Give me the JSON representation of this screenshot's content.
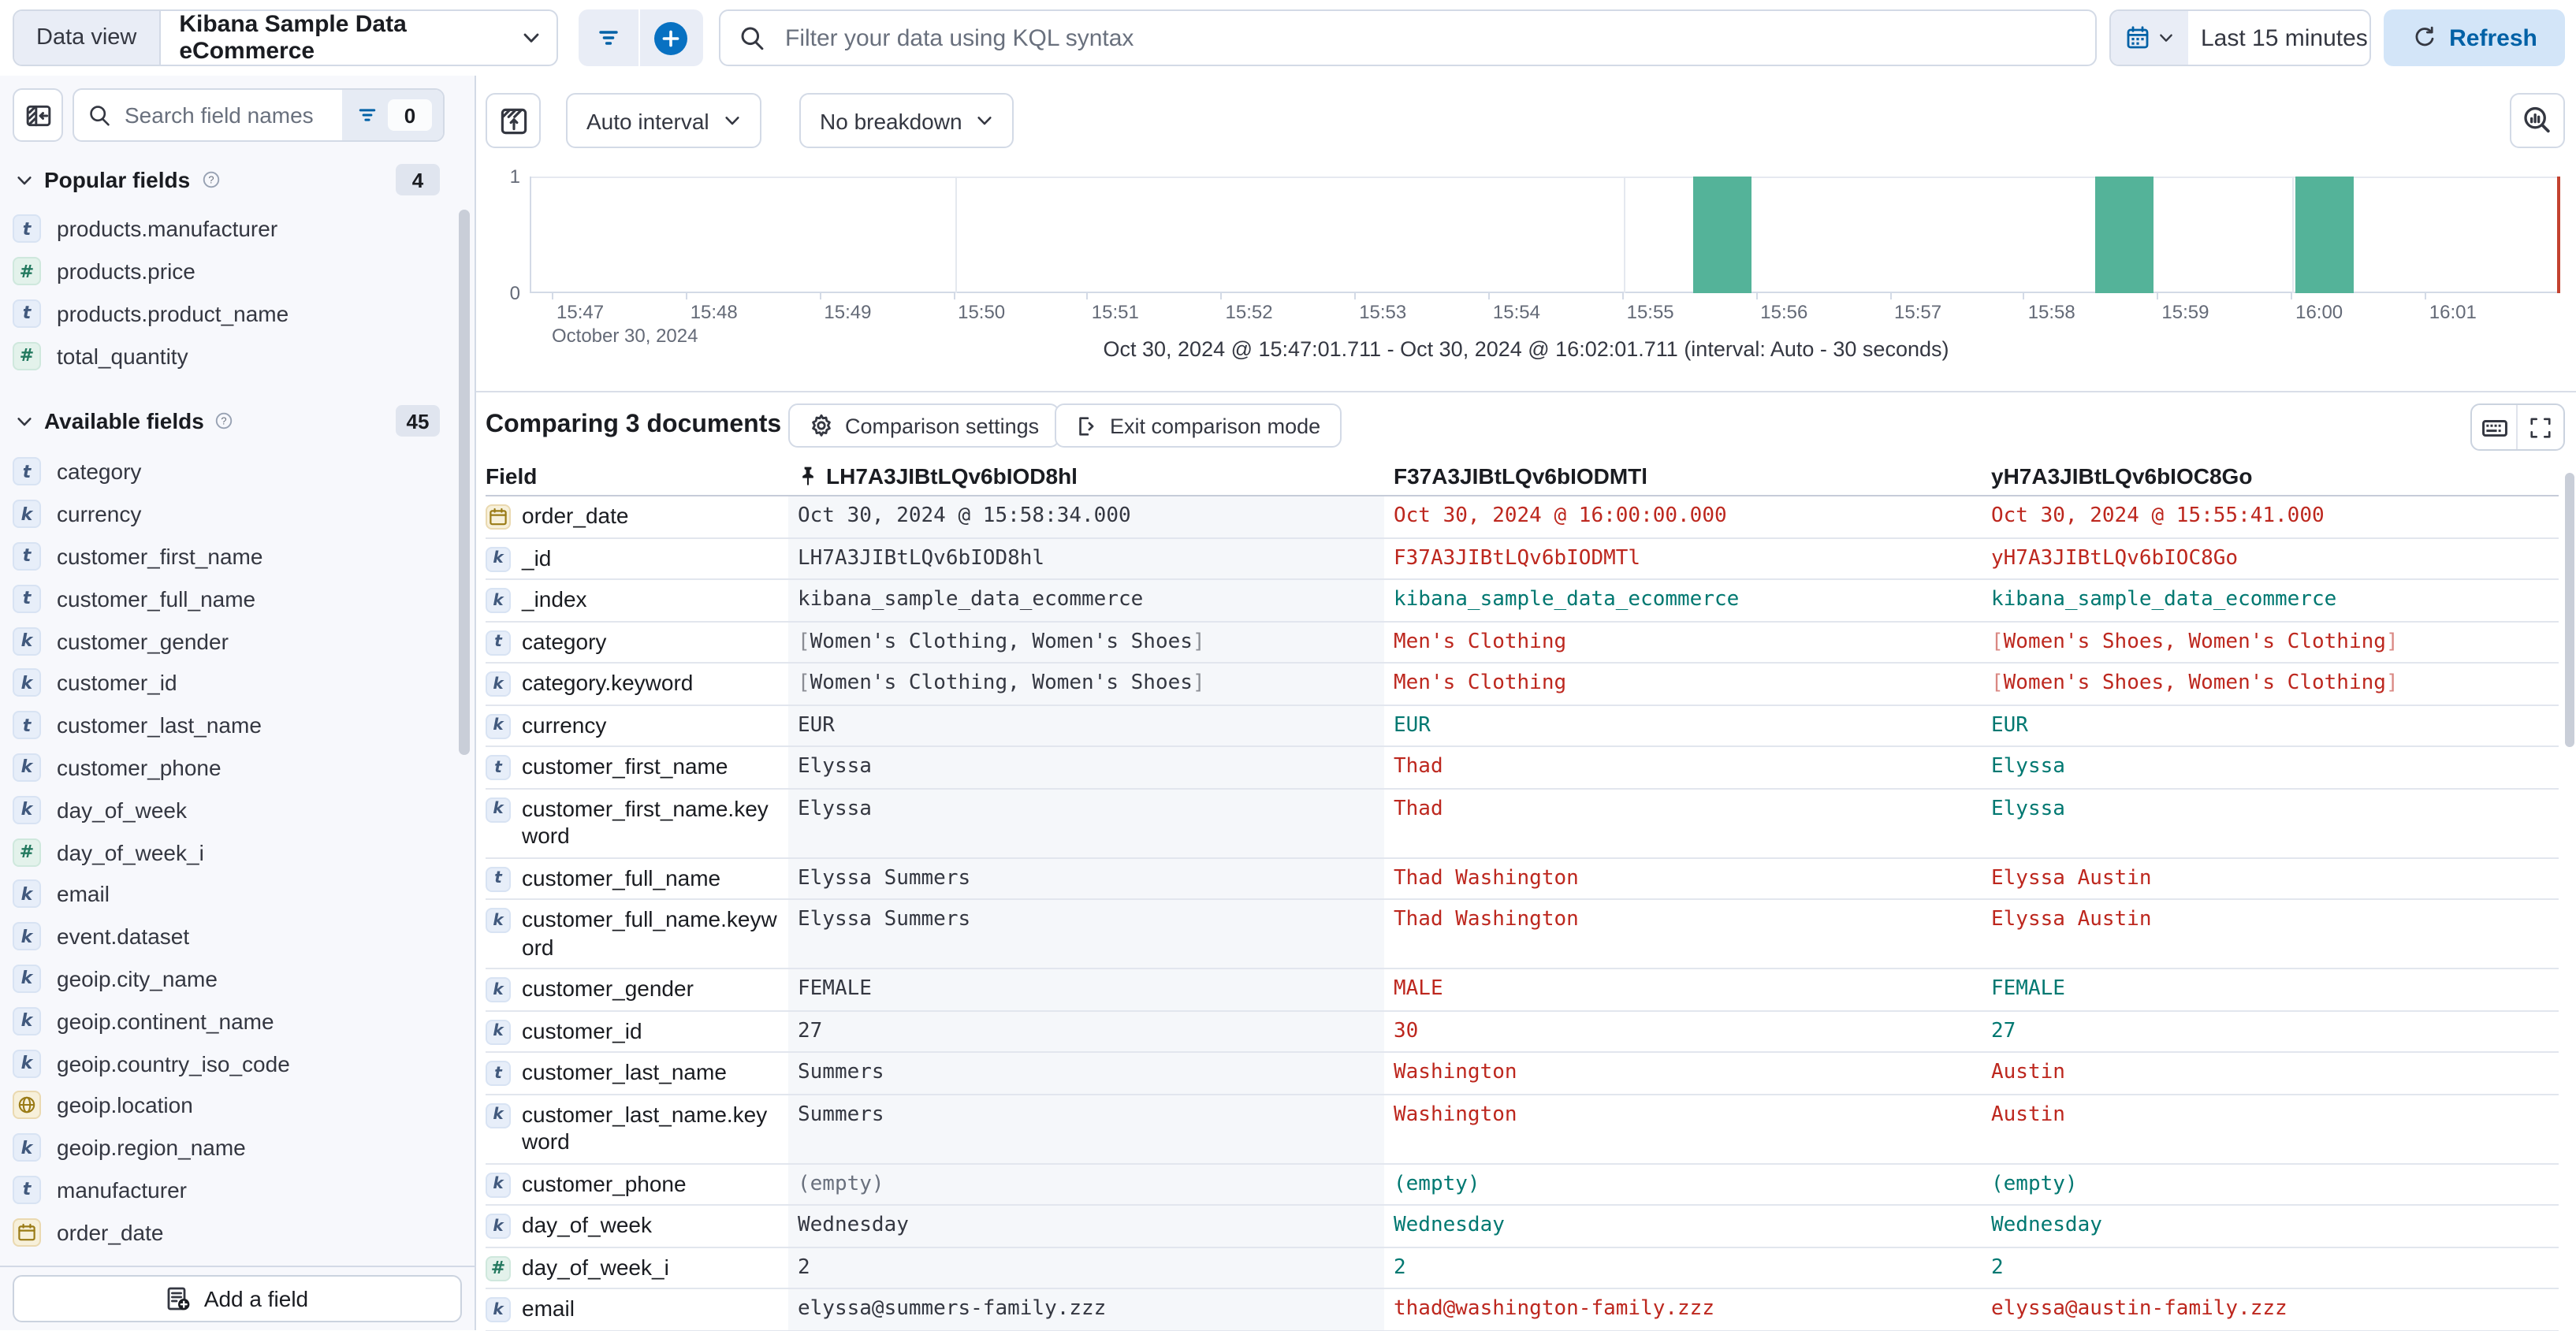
{
  "colors": {
    "primary": "#0071c2",
    "bar_green": "#54b399",
    "diff_red": "#bd271e",
    "match_teal": "#007871",
    "time_marker": "#c3422f",
    "sidebar_bg": "#f7f8fc"
  },
  "topbar": {
    "data_view_label": "Data view",
    "data_view_value": "Kibana Sample Data eCommerce",
    "kql_placeholder": "Filter your data using KQL syntax",
    "time_range": "Last 15 minutes",
    "refresh_label": "Refresh"
  },
  "sidebar": {
    "search_placeholder": "Search field names",
    "filter_count": "0",
    "popular": {
      "title": "Popular fields",
      "count": "4",
      "items": [
        {
          "icon": "t",
          "label": "products.manufacturer"
        },
        {
          "icon": "num",
          "label": "products.price"
        },
        {
          "icon": "t",
          "label": "products.product_name"
        },
        {
          "icon": "num",
          "label": "total_quantity"
        }
      ]
    },
    "available": {
      "title": "Available fields",
      "count": "45",
      "items": [
        {
          "icon": "t",
          "label": "category"
        },
        {
          "icon": "k",
          "label": "currency"
        },
        {
          "icon": "t",
          "label": "customer_first_name"
        },
        {
          "icon": "t",
          "label": "customer_full_name"
        },
        {
          "icon": "k",
          "label": "customer_gender"
        },
        {
          "icon": "k",
          "label": "customer_id"
        },
        {
          "icon": "t",
          "label": "customer_last_name"
        },
        {
          "icon": "k",
          "label": "customer_phone"
        },
        {
          "icon": "k",
          "label": "day_of_week"
        },
        {
          "icon": "num",
          "label": "day_of_week_i"
        },
        {
          "icon": "k",
          "label": "email"
        },
        {
          "icon": "k",
          "label": "event.dataset"
        },
        {
          "icon": "k",
          "label": "geoip.city_name"
        },
        {
          "icon": "k",
          "label": "geoip.continent_name"
        },
        {
          "icon": "k",
          "label": "geoip.country_iso_code"
        },
        {
          "icon": "geo",
          "label": "geoip.location"
        },
        {
          "icon": "k",
          "label": "geoip.region_name"
        },
        {
          "icon": "t",
          "label": "manufacturer"
        },
        {
          "icon": "date",
          "label": "order_date"
        }
      ]
    },
    "add_field_label": "Add a field"
  },
  "chart": {
    "interval_label": "Auto interval",
    "breakdown_label": "No breakdown",
    "y_axis_top": "1",
    "y_axis_bottom": "0",
    "x_ticks": [
      "15:47",
      "15:48",
      "15:49",
      "15:50",
      "15:51",
      "15:52",
      "15:53",
      "15:54",
      "15:55",
      "15:56",
      "15:57",
      "15:58",
      "15:59",
      "16:00",
      "16:01"
    ],
    "x_axis_secondary": "October 30, 2024",
    "caption": "Oct 30, 2024 @ 15:47:01.711 - Oct 30, 2024 @ 16:02:01.711 (interval: Auto - 30 seconds)",
    "chart_data": {
      "type": "bar",
      "x_range": [
        "Oct 30, 2024 @ 15:47:01.711",
        "Oct 30, 2024 @ 16:02:01.711"
      ],
      "interval": "30 seconds",
      "ylim": [
        0,
        1
      ],
      "y_ticks": [
        0,
        1
      ],
      "grid_minutes": [
        "15:50",
        "15:55",
        "16:00"
      ],
      "buckets": [
        {
          "time": "15:55:30",
          "count": 1
        },
        {
          "time": "15:58:30",
          "count": 1
        },
        {
          "time": "16:00:00",
          "count": 1
        }
      ],
      "bar_color": "#54b399",
      "current_time_marker": true
    }
  },
  "comparison": {
    "title": "Comparing 3 documents",
    "settings_label": "Comparison settings",
    "exit_label": "Exit comparison mode"
  },
  "table": {
    "field_header": "Field",
    "doc_headers": [
      "LH7A3JIBtLQv6bIOD8hl",
      "F37A3JIBtLQv6bIODMTl",
      "yH7A3JIBtLQv6bIOC8Go"
    ],
    "rows": [
      {
        "icon": "date",
        "field": "order_date",
        "cells": [
          {
            "t": "Oct 30, 2024 @ 15:58:34.000",
            "s": "base"
          },
          {
            "t": "Oct 30, 2024 @ 16:00:00.000",
            "s": "diff"
          },
          {
            "t": "Oct 30, 2024 @ 15:55:41.000",
            "s": "diff"
          }
        ]
      },
      {
        "icon": "k",
        "field": "_id",
        "cells": [
          {
            "t": "LH7A3JIBtLQv6bIOD8hl",
            "s": "base"
          },
          {
            "t": "F37A3JIBtLQv6bIODMTl",
            "s": "diff"
          },
          {
            "t": "yH7A3JIBtLQv6bIOC8Go",
            "s": "diff"
          }
        ]
      },
      {
        "icon": "k",
        "field": "_index",
        "cells": [
          {
            "t": "kibana_sample_data_ecommerce",
            "s": "base"
          },
          {
            "t": "kibana_sample_data_ecommerce",
            "s": "same"
          },
          {
            "t": "kibana_sample_data_ecommerce",
            "s": "same"
          }
        ]
      },
      {
        "icon": "t",
        "field": "category",
        "cells": [
          {
            "t": "[Women's Clothing, Women's Shoes]",
            "s": "base"
          },
          {
            "t": "Men's Clothing",
            "s": "diff"
          },
          {
            "t": "[Women's Shoes, Women's Clothing]",
            "s": "diff"
          }
        ]
      },
      {
        "icon": "k",
        "field": "category.keyword",
        "cells": [
          {
            "t": "[Women's Clothing, Women's Shoes]",
            "s": "base"
          },
          {
            "t": "Men's Clothing",
            "s": "diff"
          },
          {
            "t": "[Women's Shoes, Women's Clothing]",
            "s": "diff"
          }
        ]
      },
      {
        "icon": "k",
        "field": "currency",
        "cells": [
          {
            "t": "EUR",
            "s": "base"
          },
          {
            "t": "EUR",
            "s": "same"
          },
          {
            "t": "EUR",
            "s": "same"
          }
        ]
      },
      {
        "icon": "t",
        "field": "customer_first_name",
        "cells": [
          {
            "t": "Elyssa",
            "s": "base"
          },
          {
            "t": "Thad",
            "s": "diff"
          },
          {
            "t": "Elyssa",
            "s": "same"
          }
        ]
      },
      {
        "icon": "k",
        "field": "customer_first_name.keyword",
        "cells": [
          {
            "t": "Elyssa",
            "s": "base"
          },
          {
            "t": "Thad",
            "s": "diff"
          },
          {
            "t": "Elyssa",
            "s": "same"
          }
        ]
      },
      {
        "icon": "t",
        "field": "customer_full_name",
        "cells": [
          {
            "t": "Elyssa Summers",
            "s": "base"
          },
          {
            "t": "Thad Washington",
            "s": "diff"
          },
          {
            "t": "Elyssa Austin",
            "s": "diff"
          }
        ]
      },
      {
        "icon": "k",
        "field": "customer_full_name.keyword",
        "cells": [
          {
            "t": "Elyssa Summers",
            "s": "base"
          },
          {
            "t": "Thad Washington",
            "s": "diff"
          },
          {
            "t": "Elyssa Austin",
            "s": "diff"
          }
        ]
      },
      {
        "icon": "k",
        "field": "customer_gender",
        "cells": [
          {
            "t": "FEMALE",
            "s": "base"
          },
          {
            "t": "MALE",
            "s": "diff"
          },
          {
            "t": "FEMALE",
            "s": "same"
          }
        ]
      },
      {
        "icon": "k",
        "field": "customer_id",
        "cells": [
          {
            "t": "27",
            "s": "base"
          },
          {
            "t": "30",
            "s": "diff"
          },
          {
            "t": "27",
            "s": "same"
          }
        ]
      },
      {
        "icon": "t",
        "field": "customer_last_name",
        "cells": [
          {
            "t": "Summers",
            "s": "base"
          },
          {
            "t": "Washington",
            "s": "diff"
          },
          {
            "t": "Austin",
            "s": "diff"
          }
        ]
      },
      {
        "icon": "k",
        "field": "customer_last_name.keyword",
        "cells": [
          {
            "t": "Summers",
            "s": "base"
          },
          {
            "t": "Washington",
            "s": "diff"
          },
          {
            "t": "Austin",
            "s": "diff"
          }
        ]
      },
      {
        "icon": "k",
        "field": "customer_phone",
        "cells": [
          {
            "t": "(empty)",
            "s": "empty"
          },
          {
            "t": "(empty)",
            "s": "same"
          },
          {
            "t": "(empty)",
            "s": "same"
          }
        ]
      },
      {
        "icon": "k",
        "field": "day_of_week",
        "cells": [
          {
            "t": "Wednesday",
            "s": "base"
          },
          {
            "t": "Wednesday",
            "s": "same"
          },
          {
            "t": "Wednesday",
            "s": "same"
          }
        ]
      },
      {
        "icon": "num",
        "field": "day_of_week_i",
        "cells": [
          {
            "t": "2",
            "s": "base"
          },
          {
            "t": "2",
            "s": "same"
          },
          {
            "t": "2",
            "s": "same"
          }
        ]
      },
      {
        "icon": "k",
        "field": "email",
        "cells": [
          {
            "t": "elyssa@summers-family.zzz",
            "s": "base"
          },
          {
            "t": "thad@washington-family.zzz",
            "s": "diff"
          },
          {
            "t": "elyssa@austin-family.zzz",
            "s": "diff"
          }
        ]
      }
    ]
  }
}
